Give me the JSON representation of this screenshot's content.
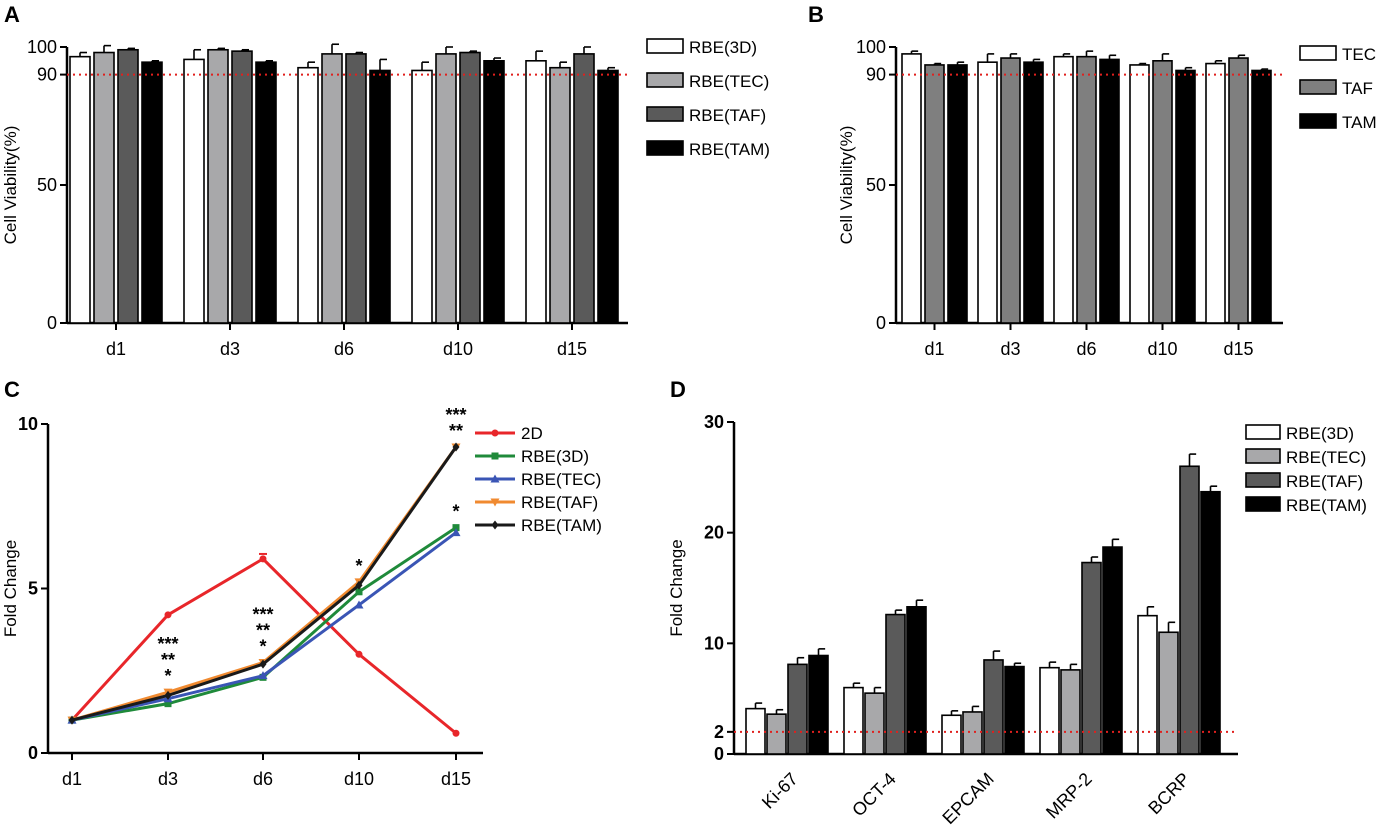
{
  "colors": {
    "white": "#ffffff",
    "light_gray": "#a8a8aa",
    "gray": "#7f7f7f",
    "dark_gray": "#5a5a5a",
    "black": "#000000",
    "threshold": "#e0201e",
    "line_2d": "#e8262a",
    "line_3d": "#1f8a3a",
    "line_tec": "#3a55b5",
    "line_taf": "#f08a30",
    "line_tam": "#1a1a1a"
  },
  "chart_data": [
    {
      "panel": "A",
      "type": "bar",
      "title": "",
      "xlabel": "",
      "ylabel": "Cell Viability(%)",
      "ylim": [
        0,
        100
      ],
      "yticks": [
        "0",
        "50",
        "90",
        "100"
      ],
      "reference_line": 90,
      "categories": [
        "d1",
        "d3",
        "d6",
        "d10",
        "d15"
      ],
      "series": [
        {
          "name": "RBE(3D)",
          "color": "white",
          "values": [
            96.5,
            95.5,
            92.5,
            91.5,
            95.0
          ],
          "errors": [
            1.5,
            3.5,
            2.0,
            3.0,
            3.5
          ]
        },
        {
          "name": "RBE(TEC)",
          "color": "light_gray",
          "values": [
            98.0,
            99.0,
            97.5,
            97.5,
            92.5
          ],
          "errors": [
            2.5,
            0.5,
            3.5,
            2.5,
            2.0
          ]
        },
        {
          "name": "RBE(TAF)",
          "color": "dark_gray",
          "values": [
            99.0,
            98.5,
            97.5,
            98.0,
            97.5
          ],
          "errors": [
            0.5,
            0.5,
            0.5,
            0.5,
            2.5
          ]
        },
        {
          "name": "RBE(TAM)",
          "color": "black",
          "values": [
            94.5,
            94.5,
            91.5,
            95.0,
            91.5
          ],
          "errors": [
            0.5,
            0.5,
            4.0,
            1.0,
            1.0
          ]
        }
      ]
    },
    {
      "panel": "B",
      "type": "bar",
      "title": "",
      "xlabel": "",
      "ylabel": "Cell Viability(%)",
      "ylim": [
        0,
        100
      ],
      "yticks": [
        "0",
        "50",
        "90",
        "100"
      ],
      "reference_line": 90,
      "categories": [
        "d1",
        "d3",
        "d6",
        "d10",
        "d15"
      ],
      "series": [
        {
          "name": "TEC",
          "color": "white",
          "values": [
            97.5,
            94.5,
            96.5,
            93.5,
            94.0
          ],
          "errors": [
            1.0,
            3.0,
            1.0,
            0.5,
            1.0
          ]
        },
        {
          "name": "TAF",
          "color": "gray",
          "values": [
            93.5,
            96.0,
            96.5,
            95.0,
            96.0
          ],
          "errors": [
            0.5,
            1.5,
            2.0,
            2.5,
            1.0
          ]
        },
        {
          "name": "TAM",
          "color": "black",
          "values": [
            93.5,
            94.5,
            95.5,
            91.5,
            91.5
          ],
          "errors": [
            1.0,
            1.0,
            1.5,
            1.0,
            0.5
          ]
        }
      ]
    },
    {
      "panel": "C",
      "type": "line",
      "title": "",
      "xlabel": "",
      "ylabel": "Fold Change",
      "ylim": [
        0,
        10
      ],
      "yticks": [
        "0",
        "5",
        "10"
      ],
      "categories": [
        "d1",
        "d3",
        "d6",
        "d10",
        "d15"
      ],
      "series": [
        {
          "name": "2D",
          "color": "line_2d",
          "marker": "circle",
          "values": [
            1.0,
            4.2,
            5.9,
            3.0,
            0.6
          ]
        },
        {
          "name": "RBE(3D)",
          "color": "line_3d",
          "marker": "square",
          "values": [
            1.0,
            1.5,
            2.3,
            4.9,
            6.85
          ]
        },
        {
          "name": "RBE(TEC)",
          "color": "line_tec",
          "marker": "triangle-up",
          "values": [
            1.0,
            1.65,
            2.35,
            4.5,
            6.7
          ]
        },
        {
          "name": "RBE(TAF)",
          "color": "line_taf",
          "marker": "triangle-down",
          "values": [
            1.0,
            1.85,
            2.75,
            5.2,
            9.3
          ]
        },
        {
          "name": "RBE(TAM)",
          "color": "line_tam",
          "marker": "diamond",
          "values": [
            1.0,
            1.75,
            2.7,
            5.1,
            9.3
          ]
        }
      ],
      "annotations": [
        {
          "category": "d3",
          "lines": [
            "***",
            "**",
            "*"
          ]
        },
        {
          "category": "d6",
          "lines": [
            "***",
            "**",
            "*"
          ]
        },
        {
          "category": "d10",
          "lines": [
            "*"
          ]
        },
        {
          "category": "d15",
          "lines": [
            "***",
            "**"
          ],
          "anchor": 9.3
        },
        {
          "category": "d15",
          "lines": [
            "*"
          ],
          "anchor": 6.85
        }
      ]
    },
    {
      "panel": "D",
      "type": "bar",
      "title": "",
      "xlabel": "",
      "ylabel": "Fold Change",
      "ylim": [
        0,
        30
      ],
      "yticks": [
        "0",
        "2",
        "10",
        "20",
        "30"
      ],
      "reference_line": 2,
      "categories": [
        "Ki-67",
        "OCT-4",
        "EPCAM",
        "MRP-2",
        "BCRP"
      ],
      "series": [
        {
          "name": "RBE(3D)",
          "color": "white",
          "values": [
            4.1,
            6.0,
            3.5,
            7.8,
            12.5
          ],
          "errors": [
            0.5,
            0.4,
            0.4,
            0.5,
            0.8
          ]
        },
        {
          "name": "RBE(TEC)",
          "color": "light_gray",
          "values": [
            3.6,
            5.5,
            3.8,
            7.6,
            11.0
          ],
          "errors": [
            0.4,
            0.5,
            0.5,
            0.5,
            0.9
          ]
        },
        {
          "name": "RBE(TAF)",
          "color": "dark_gray",
          "values": [
            8.1,
            12.6,
            8.5,
            17.3,
            26.0
          ],
          "errors": [
            0.6,
            0.4,
            0.8,
            0.5,
            1.1
          ]
        },
        {
          "name": "RBE(TAM)",
          "color": "black",
          "values": [
            8.9,
            13.3,
            7.9,
            18.7,
            23.7
          ],
          "errors": [
            0.6,
            0.6,
            0.3,
            0.7,
            0.5
          ]
        }
      ]
    }
  ]
}
